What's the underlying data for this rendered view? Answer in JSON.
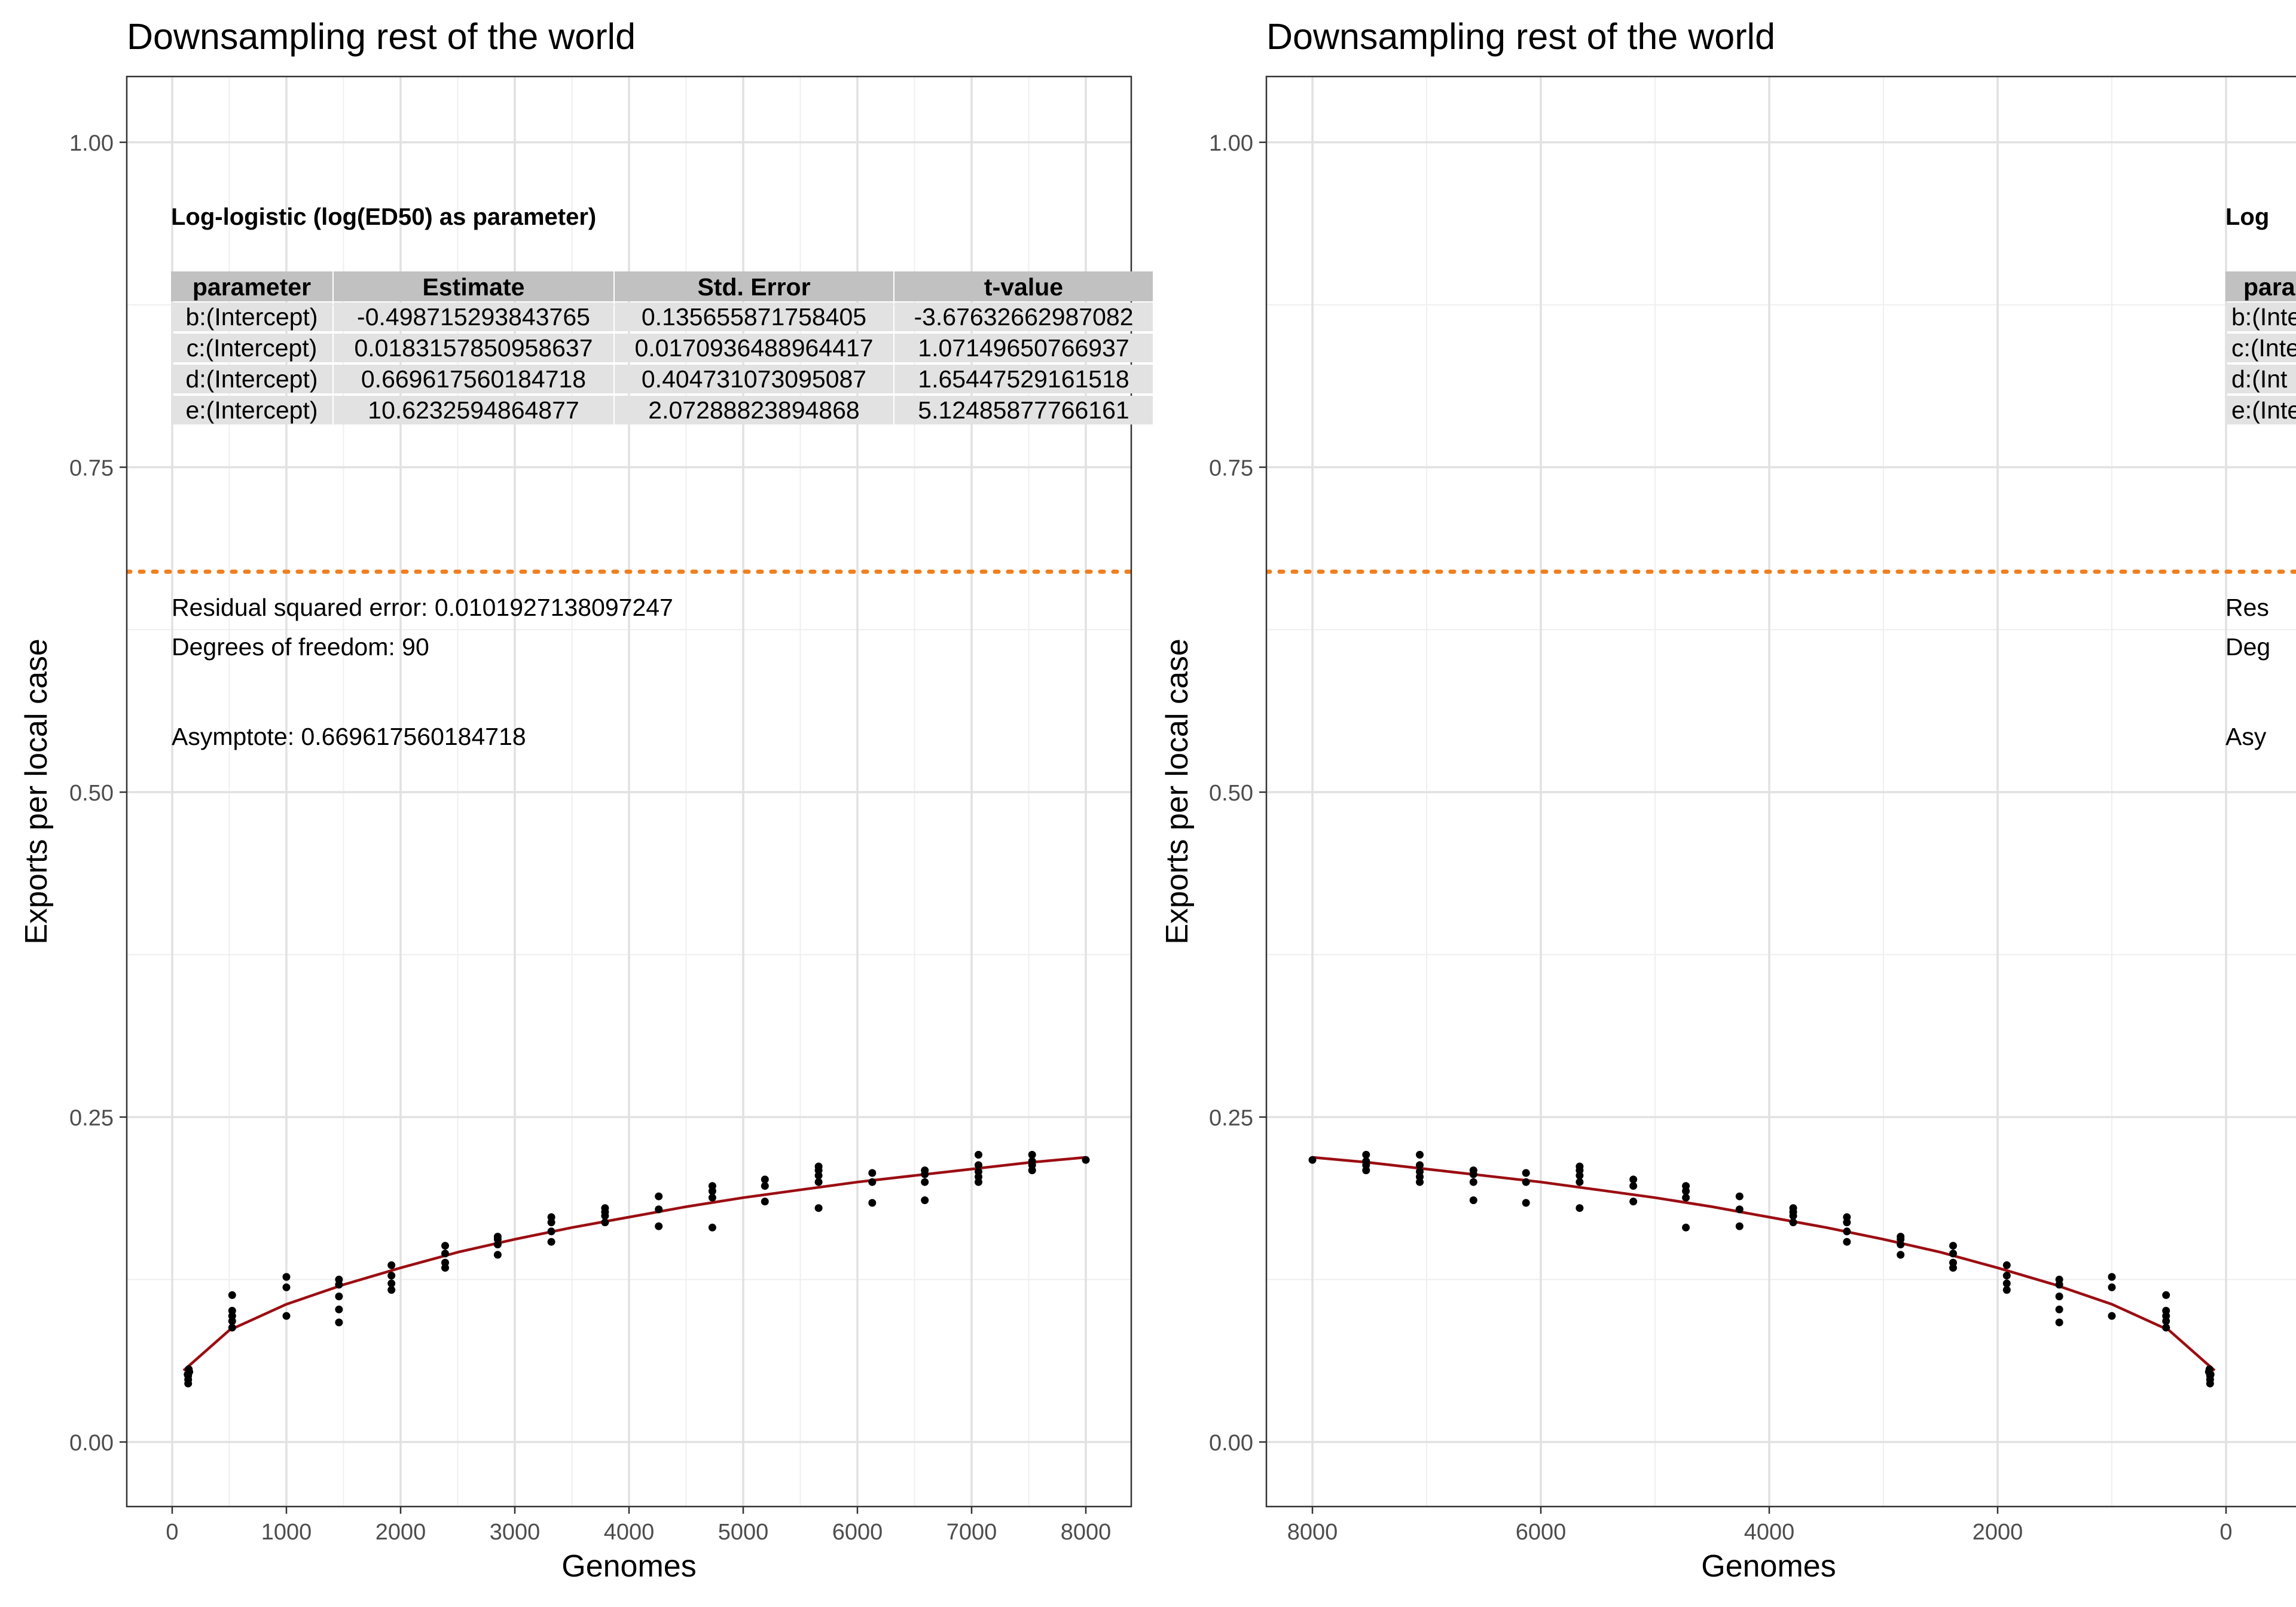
{
  "panels": [
    {
      "title": "Downsampling rest of the world",
      "xlabel": "Genomes",
      "ylabel": "Exports per local case",
      "xticks": [
        "0",
        "1000",
        "2000",
        "3000",
        "4000",
        "5000",
        "6000",
        "7000",
        "8000"
      ],
      "yticks": [
        "0.00",
        "0.25",
        "0.50",
        "0.75",
        "1.00"
      ],
      "annot": {
        "model_title": "Log-logistic (log(ED50) as parameter)",
        "table_headers": [
          "parameter",
          "Estimate",
          "Std. Error",
          "t-value"
        ],
        "table_rows": [
          [
            "b:(Intercept)",
            "-0.498715293843765",
            "0.135655871758405",
            "-3.67632662987082"
          ],
          [
            "c:(Intercept)",
            "0.0183157850958637",
            "0.0170936488964417",
            "1.07149650766937"
          ],
          [
            "d:(Intercept)",
            "0.669617560184718",
            "0.404731073095087",
            "1.65447529161518"
          ],
          [
            "e:(Intercept)",
            "10.6232594864877",
            "2.07288823894868",
            "5.12485877766161"
          ]
        ],
        "rse": "Residual squared error: 0.0101927138097247",
        "df": "Degrees of freedom: 90",
        "asymptote": "Asymptote: 0.669617560184718"
      }
    },
    {
      "title": "Downsampling rest of the world",
      "xlabel": "Genomes",
      "ylabel": "Exports per local case",
      "xticks": [
        "8000",
        "6000",
        "4000",
        "2000",
        "0"
      ],
      "yticks": [
        "0.00",
        "0.25",
        "0.50",
        "0.75",
        "1.00"
      ],
      "annot": {
        "model_title_visible": "Log",
        "table_headers_visible": [
          "para"
        ],
        "table_rows_visible": [
          "b:(Inte",
          "c:(Inte",
          "d:(Int",
          "e:(Inte"
        ],
        "rse_visible": "Res",
        "df_visible": "Deg",
        "asymptote_visible": "Asy"
      }
    }
  ],
  "colors": {
    "fit_line": "#9b0d12",
    "asymptote_line": "#f07f1f",
    "points": "#000000",
    "grid_major": "#e1e1e1",
    "grid_minor": "#efefef",
    "table_header_bg": "#c1c1c1",
    "table_row_bg": "#e2e2e2"
  },
  "chart_data": [
    {
      "type": "scatter",
      "title": "Downsampling rest of the world",
      "xlabel": "Genomes",
      "ylabel": "Exports per local case",
      "xlim": [
        -400,
        8400
      ],
      "ylim": [
        -0.05,
        1.05
      ],
      "x_reversed": false,
      "asymptote": 0.669617560184718,
      "fit": {
        "model": "log-logistic",
        "x": [
          100,
          500,
          1000,
          1500,
          2000,
          2500,
          3000,
          3500,
          4000,
          4500,
          5000,
          5500,
          6000,
          6500,
          7000,
          7500,
          8000
        ],
        "y": [
          0.055,
          0.086,
          0.106,
          0.121,
          0.134,
          0.146,
          0.156,
          0.165,
          0.173,
          0.181,
          0.188,
          0.194,
          0.2,
          0.205,
          0.21,
          0.215,
          0.219
        ]
      },
      "points": [
        [
          140,
          0.045
        ],
        [
          140,
          0.048
        ],
        [
          140,
          0.051
        ],
        [
          150,
          0.054
        ],
        [
          145,
          0.056
        ],
        [
          135,
          0.052
        ],
        [
          525,
          0.088
        ],
        [
          525,
          0.093
        ],
        [
          525,
          0.097
        ],
        [
          525,
          0.101
        ],
        [
          525,
          0.113
        ],
        [
          1000,
          0.097
        ],
        [
          1000,
          0.119
        ],
        [
          1000,
          0.127
        ],
        [
          1460,
          0.092
        ],
        [
          1460,
          0.102
        ],
        [
          1460,
          0.112
        ],
        [
          1460,
          0.121
        ],
        [
          1460,
          0.125
        ],
        [
          1920,
          0.117
        ],
        [
          1920,
          0.122
        ],
        [
          1920,
          0.128
        ],
        [
          1920,
          0.136
        ],
        [
          2390,
          0.134
        ],
        [
          2390,
          0.138
        ],
        [
          2390,
          0.145
        ],
        [
          2390,
          0.151
        ],
        [
          2850,
          0.144
        ],
        [
          2850,
          0.152
        ],
        [
          2850,
          0.156
        ],
        [
          2850,
          0.158
        ],
        [
          3320,
          0.154
        ],
        [
          3320,
          0.162
        ],
        [
          3320,
          0.169
        ],
        [
          3320,
          0.173
        ],
        [
          3790,
          0.169
        ],
        [
          3790,
          0.174
        ],
        [
          3790,
          0.177
        ],
        [
          3790,
          0.18
        ],
        [
          4260,
          0.166
        ],
        [
          4260,
          0.179
        ],
        [
          4260,
          0.189
        ],
        [
          4730,
          0.165
        ],
        [
          4730,
          0.188
        ],
        [
          4730,
          0.193
        ],
        [
          4730,
          0.197
        ],
        [
          5190,
          0.185
        ],
        [
          5190,
          0.197
        ],
        [
          5190,
          0.202
        ],
        [
          5660,
          0.18
        ],
        [
          5660,
          0.2
        ],
        [
          5660,
          0.205
        ],
        [
          5660,
          0.209
        ],
        [
          5660,
          0.212
        ],
        [
          6130,
          0.184
        ],
        [
          6130,
          0.2
        ],
        [
          6130,
          0.207
        ],
        [
          6590,
          0.186
        ],
        [
          6590,
          0.2
        ],
        [
          6590,
          0.206
        ],
        [
          6590,
          0.209
        ],
        [
          7060,
          0.2
        ],
        [
          7060,
          0.204
        ],
        [
          7060,
          0.208
        ],
        [
          7060,
          0.213
        ],
        [
          7060,
          0.221
        ],
        [
          7530,
          0.209
        ],
        [
          7530,
          0.213
        ],
        [
          7530,
          0.216
        ],
        [
          7530,
          0.221
        ],
        [
          8000,
          0.217
        ]
      ]
    },
    {
      "type": "scatter",
      "title": "Downsampling rest of the world",
      "xlabel": "Genomes",
      "ylabel": "Exports per local case",
      "xlim": [
        8400,
        -400
      ],
      "ylim": [
        -0.05,
        1.05
      ],
      "x_reversed": true,
      "asymptote": 0.669617560184718,
      "note": "Same data as the first panel drawn on a reversed x axis"
    }
  ]
}
